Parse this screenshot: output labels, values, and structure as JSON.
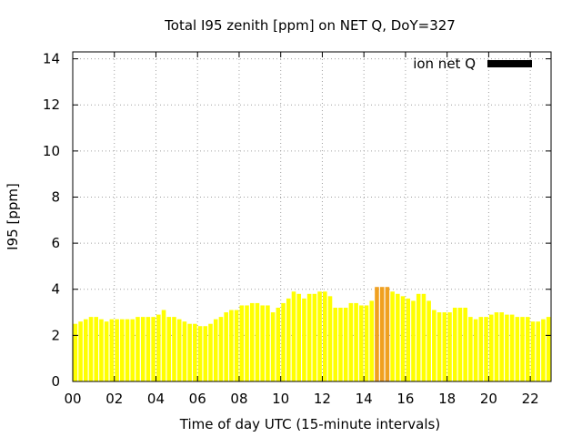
{
  "chart_data": {
    "type": "bar",
    "title": "Total I95 zenith [ppm] on NET Q, DoY=327",
    "xlabel": "Time of day UTC (15-minute intervals)",
    "ylabel": "I95 [ppm]",
    "xlim": [
      0,
      23
    ],
    "ylim": [
      0,
      14.3
    ],
    "yticks": [
      0,
      2,
      4,
      6,
      8,
      10,
      12,
      14
    ],
    "xticks": [
      0,
      2,
      4,
      6,
      8,
      10,
      12,
      14,
      16,
      18,
      20,
      22
    ],
    "xtick_labels": [
      "00",
      "02",
      "04",
      "06",
      "08",
      "10",
      "12",
      "14",
      "16",
      "18",
      "20",
      "22"
    ],
    "grid": true,
    "bar_interval_hours": 0.25,
    "series": [
      {
        "name": "ion net Q",
        "legend_color": "#000000",
        "values": [
          2.5,
          2.6,
          2.7,
          2.8,
          2.8,
          2.7,
          2.6,
          2.7,
          2.7,
          2.7,
          2.7,
          2.7,
          2.8,
          2.8,
          2.8,
          2.8,
          2.9,
          3.1,
          2.8,
          2.8,
          2.7,
          2.6,
          2.5,
          2.5,
          2.4,
          2.4,
          2.5,
          2.7,
          2.8,
          3.0,
          3.1,
          3.1,
          3.3,
          3.3,
          3.4,
          3.4,
          3.3,
          3.3,
          3.0,
          3.2,
          3.4,
          3.6,
          3.9,
          3.8,
          3.6,
          3.8,
          3.8,
          3.9,
          3.9,
          3.7,
          3.2,
          3.2,
          3.2,
          3.4,
          3.4,
          3.3,
          3.3,
          3.5,
          4.1,
          4.1,
          4.1,
          3.9,
          3.8,
          3.7,
          3.6,
          3.5,
          3.8,
          3.8,
          3.5,
          3.1,
          3.0,
          3.0,
          3.0,
          3.2,
          3.2,
          3.2,
          2.8,
          2.7,
          2.8,
          2.8,
          2.9,
          3.0,
          3.0,
          2.9,
          2.9,
          2.8,
          2.8,
          2.8,
          2.6,
          2.6,
          2.7,
          2.8
        ],
        "highlight_threshold": 4.0,
        "colors": {
          "normal": "#ffff00",
          "elevated": "#f0a020"
        }
      }
    ],
    "legend": {
      "position": "top-right"
    }
  }
}
